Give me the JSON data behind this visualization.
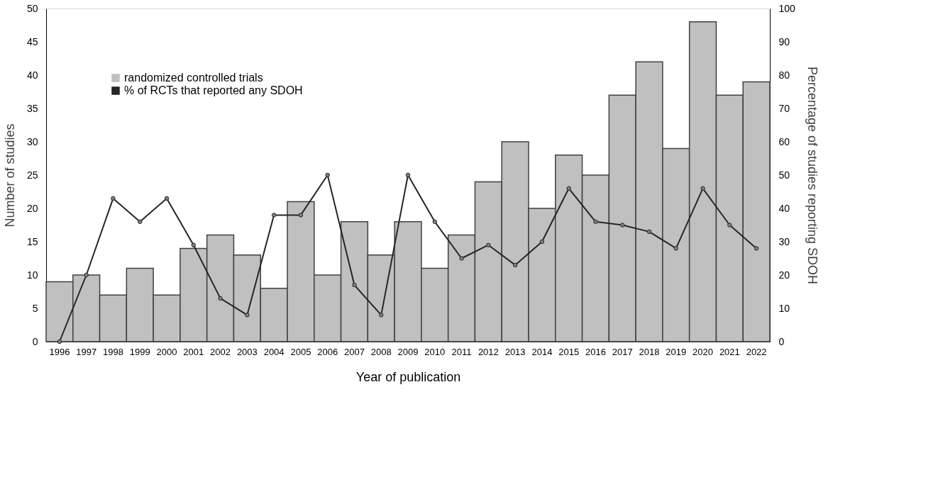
{
  "chart_data": {
    "type": "bar",
    "xlabel": "Year of publication",
    "ylabel": "Number of studies",
    "y2label": "Percentage of studies reporting SDOH",
    "categories": [
      "1996",
      "1997",
      "1998",
      "1999",
      "2000",
      "2001",
      "2002",
      "2003",
      "2004",
      "2005",
      "2006",
      "2007",
      "2008",
      "2009",
      "2010",
      "2011",
      "2012",
      "2013",
      "2014",
      "2015",
      "2016",
      "2017",
      "2018",
      "2019",
      "2020",
      "2021",
      "2022"
    ],
    "series": [
      {
        "name": "randomized controlled trials",
        "color": "#c0c0c0",
        "values": [
          9,
          10,
          7,
          11,
          7,
          14,
          16,
          13,
          8,
          21,
          10,
          18,
          13,
          18,
          11,
          16,
          24,
          30,
          20,
          28,
          25,
          37,
          42,
          29,
          48,
          37,
          39
        ]
      },
      {
        "name": "% of RCTs that reported any SDOH",
        "type": "line",
        "axis": "y2",
        "color": "#262626",
        "marker": "circle",
        "values": [
          0,
          20,
          43,
          36,
          43,
          29,
          13,
          8,
          38,
          38,
          50,
          17,
          8,
          50,
          36,
          25,
          29,
          23,
          30,
          46,
          36,
          35,
          33,
          28,
          46,
          35,
          28
        ]
      }
    ],
    "ylim": [
      0,
      50
    ],
    "yticks": [
      0,
      5,
      10,
      15,
      20,
      25,
      30,
      35,
      40,
      45,
      50
    ],
    "y2lim": [
      0,
      100
    ],
    "y2ticks": [
      0,
      10,
      20,
      30,
      40,
      50,
      60,
      70,
      80,
      90,
      100
    ],
    "legend": "top left",
    "grid": false
  }
}
